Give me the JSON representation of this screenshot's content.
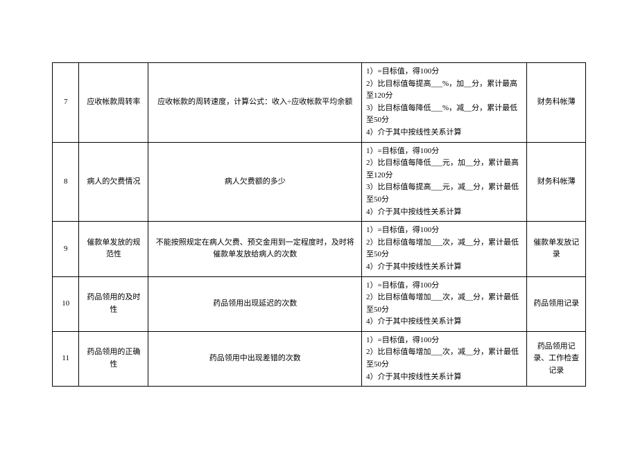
{
  "table": {
    "rows": [
      {
        "num": "7",
        "name": "应收帐款周转率",
        "desc": "应收帐款的周转速度，计算公式：收入÷应收帐款平均余额",
        "criteria": "1）=目标值，得100分\n2）比目标值每提高___%，加__分，累计最高至120分\n3）比目标值每降低___%，减__分，累计最低至50分\n4）介于其中按线性关系计算",
        "source": "财务科帐薄"
      },
      {
        "num": "8",
        "name": "病人的欠费情况",
        "desc": "病人欠费额的多少",
        "criteria": "1）=目标值，得100分\n2）比目标值每降低___元，加__分，累计最高至120分\n3）比目标值每提高___元，减__分，累计最低至50分\n4）介于其中按线性关系计算",
        "source": "财务科帐薄"
      },
      {
        "num": "9",
        "name": "催款单发放的规范性",
        "desc": "不能按照规定在病人欠费、预交金用到一定程度时，及时将催款单发放给病人的次数",
        "criteria": "1）=目标值，得100分\n2）比目标值每增加___次，减__分，累计最低至50分\n4）介于其中按线性关系计算",
        "source": "催款单发放记录"
      },
      {
        "num": "10",
        "name": "药品领用的及时性",
        "desc": "药品领用出现延迟的次数",
        "criteria": "1）=目标值，得100分\n2）比目标值每增加___次，减__分，累计最低至50分\n4）介于其中按线性关系计算",
        "source": "药品领用记录"
      },
      {
        "num": "11",
        "name": "药品领用的正确性",
        "desc": "药品领用中出现差错的次数",
        "criteria": "1）=目标值，得100分\n2）比目标值每增加___次，减__分，累计最低至50分\n4）介于其中按线性关系计算",
        "source": "药品领用记录、工作检查记录"
      }
    ]
  }
}
